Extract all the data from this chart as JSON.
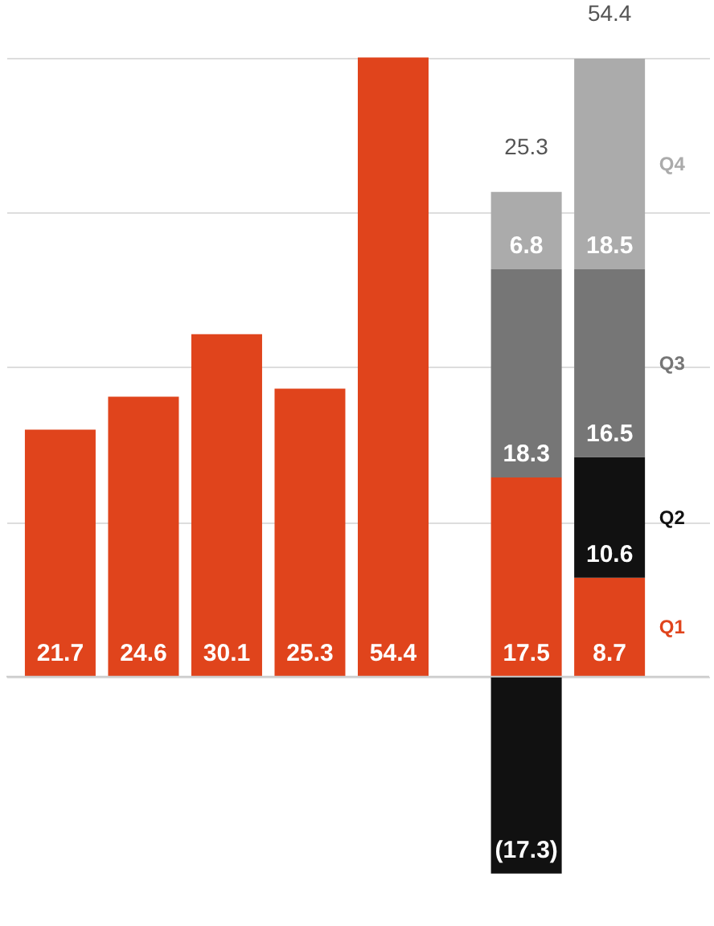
{
  "chart_data": {
    "type": "bar",
    "stacked": true,
    "categories": [
      null,
      null,
      null,
      null,
      null,
      null,
      null
    ],
    "series": [
      {
        "name": "Q1",
        "color": "#e0441c",
        "values": [
          21.7,
          24.6,
          30.1,
          25.3,
          54.4,
          17.5,
          8.7
        ],
        "value_labels": [
          "21.7",
          "24.6",
          "30.1",
          "25.3",
          "54.4",
          "17.5",
          "8.7"
        ]
      },
      {
        "name": "Q2",
        "color": "#111111",
        "values": [
          null,
          null,
          null,
          null,
          null,
          -17.3,
          10.6
        ],
        "value_labels": [
          null,
          null,
          null,
          null,
          null,
          "(17.3)",
          "10.6"
        ]
      },
      {
        "name": "Q3",
        "color": "#767676",
        "values": [
          null,
          null,
          null,
          null,
          null,
          18.3,
          16.5
        ],
        "value_labels": [
          null,
          null,
          null,
          null,
          null,
          "18.3",
          "16.5"
        ]
      },
      {
        "name": "Q4",
        "color": "#ababab",
        "values": [
          null,
          null,
          null,
          null,
          null,
          6.8,
          18.5
        ],
        "value_labels": [
          null,
          null,
          null,
          null,
          null,
          "6.8",
          "18.5"
        ]
      }
    ],
    "totals": [
      null,
      null,
      null,
      null,
      null,
      "25.3",
      "54.4"
    ],
    "yticks": [
      {
        "value": 0,
        "label": null
      },
      {
        "value": 13.6,
        "label": null
      },
      {
        "value": 27.2,
        "label": null
      },
      {
        "value": 40.8,
        "label": null
      },
      {
        "value": 54.4,
        "label": null
      }
    ],
    "grid": "y",
    "legend": "right"
  }
}
